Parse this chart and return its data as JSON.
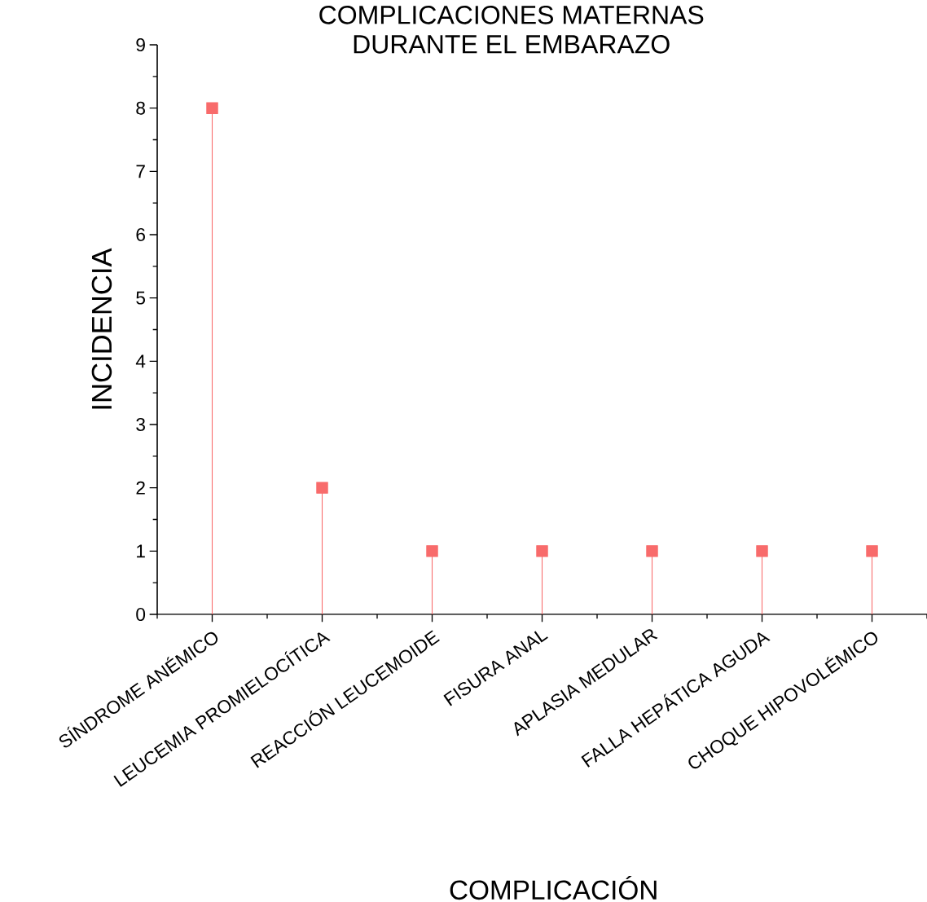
{
  "chart_data": {
    "type": "lollipop",
    "title": "COMPLICACIONES MATERNAS\nDURANTE EL EMBARAZO",
    "xlabel": "COMPLICACIÓN",
    "ylabel": "INCIDENCIA",
    "categories": [
      "SÍNDROME ANÉMICO",
      "LEUCEMIA PROMIELOCÍTICA",
      "REACCIÓN LEUCEMOIDE",
      "FISURA ANAL",
      "APLASIA MEDULAR",
      "FALLA HEPÁTICA AGUDA",
      "CHOQUE HIPOVOLÉMICO"
    ],
    "values": [
      8,
      2,
      1,
      1,
      1,
      1,
      1
    ],
    "color": "#f86b6b",
    "marker": "square",
    "ylim": [
      0,
      9
    ],
    "yticks": [
      0,
      1,
      2,
      3,
      4,
      5,
      6,
      7,
      8,
      9
    ],
    "grid": false
  }
}
